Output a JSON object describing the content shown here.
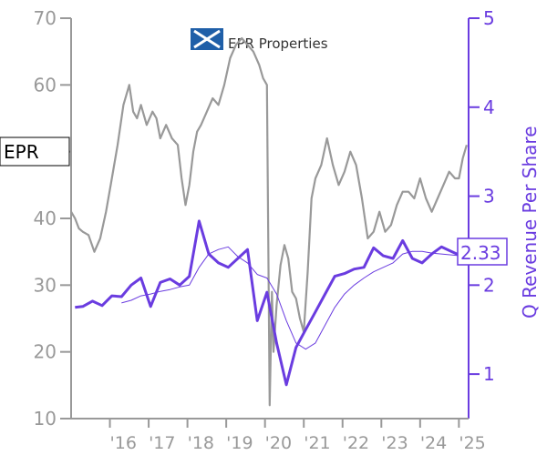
{
  "chart_data": {
    "type": "line",
    "title": "",
    "logo_text": "EPR Properties",
    "ticker_label": "EPR",
    "ylabel_right": "Q Revenue Per Share",
    "last_value_label": "2.33",
    "x_tick_labels": [
      "'16",
      "'17",
      "'18",
      "'19",
      "'20",
      "'21",
      "'22",
      "'23",
      "'24",
      "'25"
    ],
    "x_range": [
      2015.0,
      2025.25
    ],
    "ylim_left": [
      10,
      70
    ],
    "yticks_left": [
      10,
      20,
      30,
      40,
      50,
      60,
      70
    ],
    "ylim_right": [
      0.5,
      5.0
    ],
    "yticks_right": [
      1,
      2,
      3,
      4,
      5
    ],
    "grid": false,
    "colors": {
      "price": "#999999",
      "revenue": "#6a3ce0",
      "axis_left": "#999999",
      "axis_right": "#6a3ce0"
    },
    "series": [
      {
        "axis": "left",
        "style": "price",
        "x": [
          2015.0,
          2015.1,
          2015.2,
          2015.3,
          2015.45,
          2015.6,
          2015.75,
          2015.9,
          2016.05,
          2016.2,
          2016.35,
          2016.5,
          2016.6,
          2016.7,
          2016.8,
          2016.95,
          2017.1,
          2017.2,
          2017.3,
          2017.45,
          2017.6,
          2017.75,
          2017.85,
          2017.95,
          2018.05,
          2018.15,
          2018.25,
          2018.35,
          2018.5,
          2018.65,
          2018.8,
          2018.95,
          2019.1,
          2019.25,
          2019.4,
          2019.55,
          2019.7,
          2019.85,
          2019.95,
          2020.05,
          2020.12,
          2020.18,
          2020.22,
          2020.3,
          2020.4,
          2020.5,
          2020.6,
          2020.7,
          2020.8,
          2020.9,
          2021.0,
          2021.1,
          2021.2,
          2021.3,
          2021.45,
          2021.6,
          2021.75,
          2021.9,
          2022.05,
          2022.2,
          2022.35,
          2022.5,
          2022.65,
          2022.8,
          2022.95,
          2023.1,
          2023.25,
          2023.4,
          2023.55,
          2023.7,
          2023.85,
          2024.0,
          2024.15,
          2024.3,
          2024.45,
          2024.6,
          2024.75,
          2024.9,
          2025.0,
          2025.1,
          2025.2
        ],
        "values": [
          41,
          40,
          38.5,
          38,
          37.5,
          35,
          37,
          41,
          46,
          51,
          57,
          60,
          56,
          55,
          57,
          54,
          56,
          55,
          52,
          54,
          52,
          51,
          46,
          42,
          45,
          50,
          53,
          54,
          56,
          58,
          57,
          60,
          64,
          66,
          67,
          66,
          65,
          63,
          61,
          60,
          12,
          29,
          20,
          27,
          33,
          36,
          34,
          29,
          28,
          25,
          23,
          32,
          43,
          46,
          48,
          52,
          48,
          45,
          47,
          50,
          48,
          43,
          37,
          38,
          41,
          38,
          39,
          42,
          44,
          44,
          43,
          46,
          43,
          41,
          43,
          45,
          47,
          46,
          46,
          49,
          51
        ]
      },
      {
        "axis": "right",
        "style": "revenue-quarterly",
        "x": [
          2015.1,
          2015.3,
          2015.55,
          2015.8,
          2016.05,
          2016.3,
          2016.55,
          2016.8,
          2017.05,
          2017.3,
          2017.55,
          2017.8,
          2018.05,
          2018.3,
          2018.55,
          2018.8,
          2019.05,
          2019.3,
          2019.55,
          2019.8,
          2020.05,
          2020.3,
          2020.55,
          2020.8,
          2021.05,
          2021.3,
          2021.55,
          2021.8,
          2022.05,
          2022.3,
          2022.55,
          2022.8,
          2023.05,
          2023.3,
          2023.55,
          2023.8,
          2024.05,
          2024.3,
          2024.55,
          2024.8,
          2025.05
        ],
        "values": [
          1.75,
          1.76,
          1.82,
          1.77,
          1.88,
          1.87,
          2.0,
          2.08,
          1.76,
          2.03,
          2.07,
          2.0,
          2.1,
          2.72,
          2.35,
          2.25,
          2.2,
          2.3,
          2.4,
          1.6,
          1.92,
          1.35,
          0.88,
          1.3,
          1.5,
          1.7,
          1.9,
          2.1,
          2.13,
          2.18,
          2.2,
          2.42,
          2.33,
          2.3,
          2.5,
          2.3,
          2.25,
          2.35,
          2.43,
          2.38,
          2.33
        ]
      },
      {
        "axis": "right",
        "style": "revenue-trailing",
        "x": [
          2016.3,
          2016.55,
          2016.8,
          2017.05,
          2017.3,
          2017.55,
          2017.8,
          2018.05,
          2018.3,
          2018.55,
          2018.8,
          2019.05,
          2019.3,
          2019.55,
          2019.8,
          2020.05,
          2020.3,
          2020.55,
          2020.8,
          2021.05,
          2021.3,
          2021.55,
          2021.8,
          2022.05,
          2022.3,
          2022.55,
          2022.8,
          2023.05,
          2023.3,
          2023.55,
          2023.8,
          2024.05,
          2024.3,
          2024.55,
          2024.8,
          2025.05
        ],
        "values": [
          1.8,
          1.83,
          1.88,
          1.9,
          1.93,
          1.95,
          1.98,
          2.0,
          2.2,
          2.35,
          2.4,
          2.43,
          2.32,
          2.25,
          2.12,
          2.08,
          1.9,
          1.6,
          1.35,
          1.28,
          1.35,
          1.55,
          1.75,
          1.9,
          2.0,
          2.08,
          2.15,
          2.2,
          2.25,
          2.35,
          2.38,
          2.38,
          2.36,
          2.35,
          2.34,
          2.33
        ]
      }
    ]
  }
}
